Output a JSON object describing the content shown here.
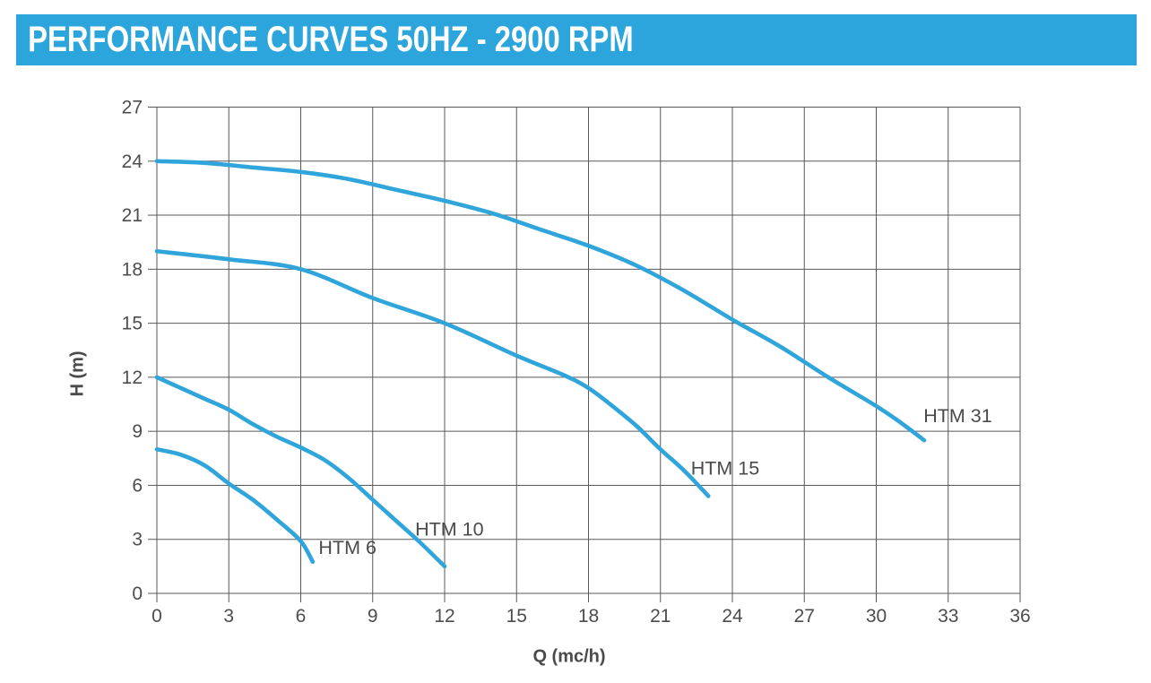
{
  "header": {
    "title": "PERFORMANCE CURVES 50HZ - 2900 RPM"
  },
  "colors": {
    "accent_bar": "#2CA4DC",
    "curve": "#2FA5DB",
    "grid": "#595959",
    "tick_text": "#4d4d4d",
    "label_text": "#4a4a4a",
    "title_text": "#ffffff",
    "background": "#ffffff"
  },
  "chart_data": {
    "type": "line",
    "title": "PERFORMANCE CURVES 50HZ - 2900 RPM",
    "xlabel": "Q (mc/h)",
    "ylabel": "H (m)",
    "xlim": [
      0,
      36
    ],
    "ylim": [
      0,
      27
    ],
    "xticks": [
      0,
      3,
      6,
      9,
      12,
      15,
      18,
      21,
      24,
      27,
      30,
      33,
      36
    ],
    "yticks": [
      0,
      3,
      6,
      9,
      12,
      15,
      18,
      21,
      24,
      27
    ],
    "grid": true,
    "legend_position": "inline-labels",
    "series": [
      {
        "name": "HTM 6",
        "label_at": [
          7.95,
          2.55
        ],
        "points": [
          [
            0,
            8
          ],
          [
            1,
            7.7
          ],
          [
            2,
            7.1
          ],
          [
            3,
            6.1
          ],
          [
            4,
            5.2
          ],
          [
            5,
            4.1
          ],
          [
            6,
            2.9
          ],
          [
            6.5,
            1.75
          ]
        ]
      },
      {
        "name": "HTM 10",
        "label_at": [
          12.2,
          3.55
        ],
        "points": [
          [
            0,
            12
          ],
          [
            1,
            11.4
          ],
          [
            2,
            10.8
          ],
          [
            3,
            10.2
          ],
          [
            4,
            9.4
          ],
          [
            5,
            8.7
          ],
          [
            6,
            8.1
          ],
          [
            7,
            7.4
          ],
          [
            8,
            6.4
          ],
          [
            9,
            5.2
          ],
          [
            10,
            4.0
          ],
          [
            11,
            2.8
          ],
          [
            12,
            1.5
          ]
        ]
      },
      {
        "name": "HTM 15",
        "label_at": [
          23.7,
          6.95
        ],
        "points": [
          [
            0,
            19
          ],
          [
            3,
            18.55
          ],
          [
            6,
            18.0
          ],
          [
            9,
            16.4
          ],
          [
            12,
            15.0
          ],
          [
            15,
            13.2
          ],
          [
            17,
            12.1
          ],
          [
            18,
            11.4
          ],
          [
            19,
            10.4
          ],
          [
            20,
            9.3
          ],
          [
            21,
            8.0
          ],
          [
            22,
            6.8
          ],
          [
            23,
            5.4
          ]
        ]
      },
      {
        "name": "HTM 31",
        "label_at": [
          33.4,
          9.85
        ],
        "points": [
          [
            0,
            24
          ],
          [
            2,
            23.9
          ],
          [
            4,
            23.65
          ],
          [
            6,
            23.4
          ],
          [
            8,
            23.0
          ],
          [
            10,
            22.4
          ],
          [
            12,
            21.8
          ],
          [
            14,
            21.1
          ],
          [
            16,
            20.2
          ],
          [
            18,
            19.3
          ],
          [
            20,
            18.2
          ],
          [
            22,
            16.8
          ],
          [
            24,
            15.2
          ],
          [
            26,
            13.7
          ],
          [
            28,
            12.0
          ],
          [
            30,
            10.4
          ],
          [
            31,
            9.5
          ],
          [
            32,
            8.5
          ]
        ]
      }
    ]
  }
}
